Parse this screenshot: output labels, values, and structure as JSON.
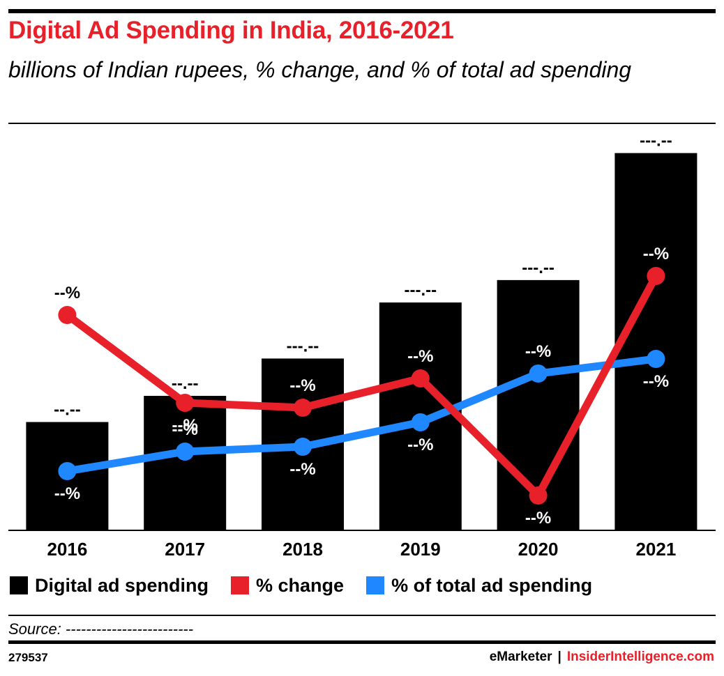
{
  "header": {
    "title": "Digital Ad Spending in India, 2016-2021",
    "subtitle": "billions of Indian rupees, % change, and % of total ad spending"
  },
  "chart_data": {
    "type": "bar",
    "categories": [
      "2016",
      "2017",
      "2018",
      "2019",
      "2020",
      "2021"
    ],
    "bar_labels": [
      "--.--",
      "--.--",
      "---.--",
      "---.--",
      "---.--",
      "---.--"
    ],
    "change_labels": [
      "--%",
      "--%",
      "--%",
      "--%",
      "--%",
      "--%"
    ],
    "share_labels": [
      "--%",
      "--%",
      "--%",
      "--%",
      "--%",
      "--%"
    ],
    "series": [
      {
        "name": "Digital ad spending",
        "kind": "bar",
        "color": "#000000",
        "values": [
          29,
          36,
          46,
          61,
          67,
          101
        ]
      },
      {
        "name": "% change",
        "kind": "line",
        "color": "#e8202a",
        "values": [
          48,
          30,
          29,
          35,
          11,
          56
        ]
      },
      {
        "name": "% of total ad spending",
        "kind": "line",
        "color": "#1f87ff",
        "values": [
          16,
          20,
          21,
          26,
          36,
          39
        ]
      }
    ],
    "ylim": [
      0,
      105
    ],
    "grid": false,
    "legend_position": "bottom-left"
  },
  "legend": [
    {
      "label": "Digital ad spending",
      "color": "#000000"
    },
    {
      "label": "% change",
      "color": "#e8202a"
    },
    {
      "label": "% of total ad spending",
      "color": "#1f87ff"
    }
  ],
  "footer": {
    "source": "Source: -------------------------",
    "chart_id": "279537",
    "brand_a": "eMarketer",
    "separator": "|",
    "brand_b": "InsiderIntelligence.com"
  }
}
